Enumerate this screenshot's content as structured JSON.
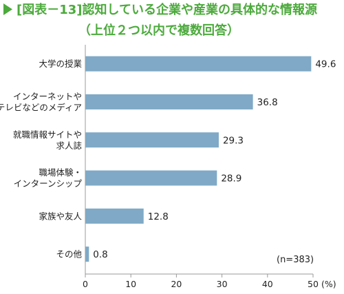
{
  "chart_data": {
    "type": "bar",
    "orientation": "horizontal",
    "title_lines": [
      "[図表－13]認知している企業や産業の具体的な情報源",
      "（上位２つ以内で複数回答）"
    ],
    "categories": [
      [
        "大学の授業"
      ],
      [
        "インターネットや",
        "テレビなどのメディア"
      ],
      [
        "就職情報サイトや",
        "求人誌"
      ],
      [
        "職場体験・",
        "インターンシップ"
      ],
      [
        "家族や友人"
      ],
      [
        "その他"
      ]
    ],
    "values": [
      49.6,
      36.8,
      29.3,
      28.9,
      12.8,
      0.8
    ],
    "value_labels": [
      "49.6",
      "36.8",
      "29.3",
      "28.9",
      "12.8",
      "0.8"
    ],
    "xlim": [
      0,
      50
    ],
    "x_ticks": [
      0,
      10,
      20,
      30,
      40,
      50
    ],
    "x_unit": "(%)",
    "annotation": "(n=383)",
    "grid": false,
    "bar_color": "#7fa9c6",
    "title_color": "#4caa3c",
    "marker_color": "#4caa3c"
  }
}
